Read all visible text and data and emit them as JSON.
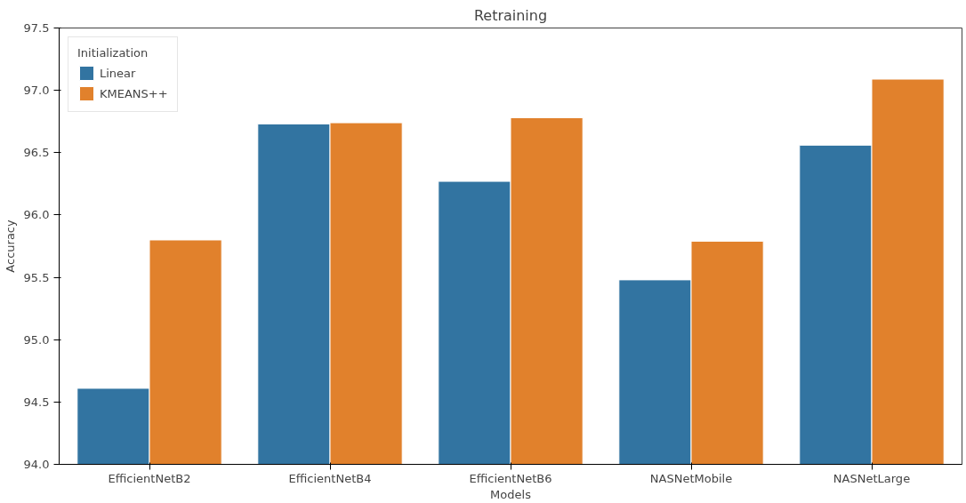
{
  "chart_data": {
    "type": "bar",
    "title": "Retraining",
    "xlabel": "Models",
    "ylabel": "Accuracy",
    "legend_title": "Initialization",
    "categories": [
      "EfficientNetB2",
      "EfficientNetB4",
      "EfficientNetB6",
      "NASNetMobile",
      "NASNetLarge"
    ],
    "series": [
      {
        "name": "Linear",
        "color": "#3274a1",
        "values": [
          94.61,
          96.73,
          96.27,
          95.48,
          96.56
        ]
      },
      {
        "name": "KMEANS++",
        "color": "#e1812c",
        "values": [
          95.8,
          96.74,
          96.78,
          95.79,
          97.09
        ]
      }
    ],
    "ylim": [
      94.0,
      97.5
    ],
    "yticks": [
      {
        "value": 94.0,
        "label": "94.0"
      },
      {
        "value": 94.5,
        "label": "94.5"
      },
      {
        "value": 95.0,
        "label": "95.0"
      },
      {
        "value": 95.5,
        "label": "95.5"
      },
      {
        "value": 96.0,
        "label": "96.0"
      },
      {
        "value": 96.5,
        "label": "96.5"
      },
      {
        "value": 97.0,
        "label": "97.0"
      },
      {
        "value": 97.5,
        "label": "97.5"
      }
    ],
    "grid": false,
    "legend": "top left"
  }
}
